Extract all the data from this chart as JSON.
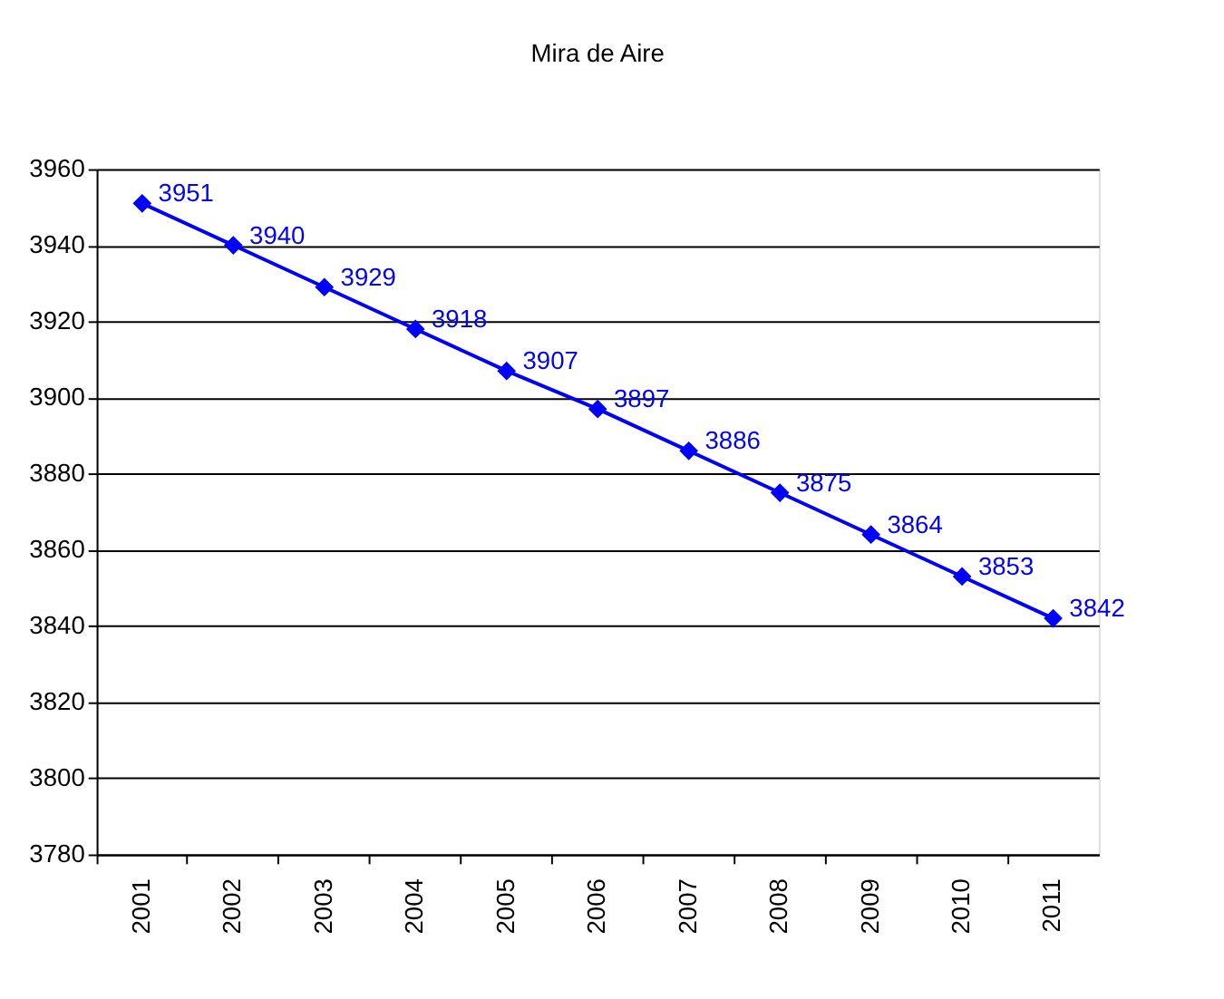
{
  "chart_data": {
    "type": "line",
    "title": "Mira de Aire",
    "categories": [
      "2001",
      "2002",
      "2003",
      "2004",
      "2005",
      "2006",
      "2007",
      "2008",
      "2009",
      "2010",
      "2011"
    ],
    "series": [
      {
        "color": "#0000ff",
        "values": [
          3951,
          3940,
          3929,
          3918,
          3907,
          3897,
          3886,
          3875,
          3864,
          3853,
          3842
        ]
      }
    ],
    "ylim": [
      3780,
      3960
    ],
    "yticks": [
      3780,
      3800,
      3820,
      3840,
      3860,
      3880,
      3900,
      3920,
      3940,
      3960
    ],
    "grid": "y",
    "legend": false,
    "marker": "diamond",
    "line_style": "solid",
    "data_labels": true
  }
}
